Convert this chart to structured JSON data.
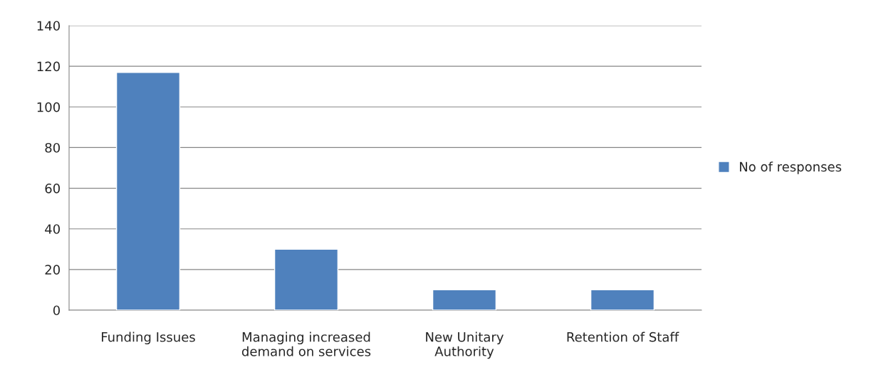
{
  "chart_data": {
    "type": "bar",
    "categories": [
      "Funding Issues",
      "Managing increased demand on services",
      "New Unitary Authority",
      "Retention of Staff"
    ],
    "series": [
      {
        "name": "No of responses",
        "color": "#4f81bd",
        "values": [
          117,
          30,
          10,
          10
        ]
      }
    ],
    "ylim": [
      0,
      140
    ],
    "yticks": [
      0,
      20,
      40,
      60,
      80,
      100,
      120,
      140
    ],
    "grid": "y",
    "legend": "right"
  }
}
